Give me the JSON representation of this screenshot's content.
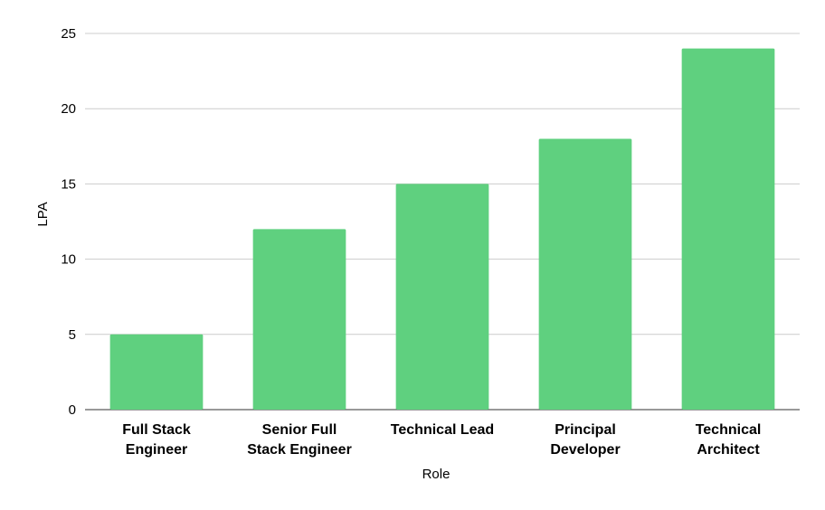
{
  "chart_data": {
    "type": "bar",
    "title": "",
    "xlabel": "Role",
    "ylabel": "LPA",
    "categories": [
      [
        "Full Stack",
        "Engineer"
      ],
      [
        "Senior Full",
        "Stack Engineer"
      ],
      [
        "Technical Lead"
      ],
      [
        "Principal",
        "Developer"
      ],
      [
        "Technical",
        "Architect"
      ]
    ],
    "values": [
      5,
      12,
      15,
      18,
      24
    ],
    "ylim": [
      0,
      25
    ],
    "yticks": [
      0,
      5,
      10,
      15,
      20,
      25
    ],
    "grid": true,
    "legend": "none",
    "colors": {
      "bar": "#5fd07f"
    }
  }
}
